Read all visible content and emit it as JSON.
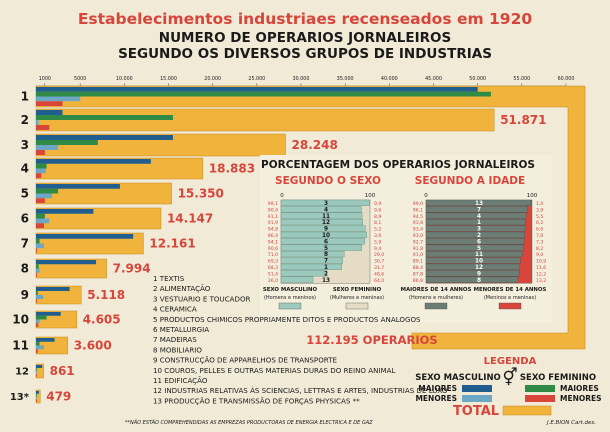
{
  "chart_data": {
    "type": "bar",
    "title": "Estabelecimentos industriaes recenseados em 1920",
    "subtitle": [
      "NUMERO DE OPERARIOS JORNALEIROS",
      "SEGUNDO OS DIVERSOS GRUPOS DE INDUSTRIAS"
    ],
    "x_ticks": [
      "1000",
      "5000",
      "10.000",
      "15.000",
      "20.000",
      "25.000",
      "30.000",
      "35.000",
      "40.000",
      "45.000",
      "50.000",
      "55.000",
      "60.000"
    ],
    "xlim": [
      0,
      60000
    ],
    "categories": [
      "1",
      "2",
      "3",
      "4",
      "5",
      "6",
      "7",
      "8",
      "9",
      "10",
      "11",
      "12",
      "13*"
    ],
    "total_labels": [
      "",
      "51.871",
      "28.248",
      "18.883",
      "15.350",
      "14.147",
      "12.161",
      "7.994",
      "5.118",
      "4.605",
      "3.600",
      "861",
      "479"
    ],
    "series": [
      {
        "name": "Total",
        "values": [
          60000,
          51871,
          28248,
          18883,
          15350,
          14147,
          12161,
          7994,
          5118,
          4605,
          3600,
          861,
          479
        ]
      },
      {
        "name": "Sexo masculino - maiores",
        "values": [
          50000,
          3000,
          15500,
          13000,
          9500,
          6500,
          11000,
          6800,
          3800,
          2800,
          2100,
          700,
          330
        ]
      },
      {
        "name": "Sexo feminino - maiores",
        "values": [
          51500,
          15500,
          7000,
          1200,
          2500,
          1000,
          400,
          300,
          200,
          1200,
          400,
          40,
          20
        ]
      },
      {
        "name": "Sexo masculino - menores",
        "values": [
          5000,
          300,
          2500,
          1100,
          1800,
          1500,
          900,
          400,
          800,
          400,
          900,
          100,
          90
        ]
      },
      {
        "name": "Sexo feminino - menores",
        "values": [
          3000,
          1500,
          1000,
          600,
          1000,
          900,
          100,
          50,
          100,
          250,
          200,
          20,
          40
        ]
      }
    ],
    "industry_legend": [
      "1  TEXTIS",
      "2  ALIMENTAÇÃO",
      "3  VESTUARIO E TOUCADOR",
      "4  CERAMICA",
      "5  PRODUCTOS CHIMICOS PROPRIAMENTE DITOS E PRODUCTOS ANALOGOS",
      "6  METALLURGIA",
      "7  MADEIRAS",
      "8  MOBILIARIO",
      "9  CONSTRUCÇÃO DE APPARELHOS DE TRANSPORTE",
      "10  COUROS, PELLES E OUTRAS MATERIAS DURAS DO REINO ANIMAL",
      "11  EDIFICAÇÃO",
      "12  INDUSTRIAS RELATIVAS ÁS SCIENCIAS, LETTRAS E ARTES, INDUSTRIAS DE LUXO",
      "13  PRODUCÇÃO E TRANSMISSÃO DE FORÇAS PHYSICAS **"
    ],
    "total_workers": "112.195 OPERARIOS",
    "footnote": "**NÃO ESTÃO COMPREHENDIDAS AS EMPREZAS PRODUCTORAS DE ENERGIA ELECTRICA E DE GAZ",
    "signature": "J.E.BION Cart.des.",
    "inset": {
      "title": "PORCENTAGEM DOS OPERARIOS JORNALEIROS",
      "sub_sex": "SEGUNDO O SEXO",
      "sub_age": "SEGUNDO A IDADE",
      "scale": [
        "0",
        "100"
      ],
      "left_labels": [
        "99,1",
        "90,4",
        "91,1",
        "91,9",
        "94,8",
        "96,4",
        "94,1",
        "90,6",
        "71,0",
        "69,3",
        "68,3",
        "51,4",
        "36,0"
      ],
      "right_labels": [
        "0,9",
        "9,6",
        "8,9",
        "8,1",
        "5,2",
        "3,6",
        "5,9",
        "9,4",
        "29,0",
        "30,7",
        "31,7",
        "48,6",
        "64,0"
      ],
      "age_left_labels": [
        "99,0",
        "96,1",
        "94,5",
        "93,8",
        "93,4",
        "93,0",
        "92,7",
        "91,8",
        "91,0",
        "89,1",
        "88,4",
        "87,8",
        "86,8"
      ],
      "age_right_labels": [
        "1,0",
        "3,9",
        "5,5",
        "6,2",
        "6,6",
        "7,0",
        "7,3",
        "8,2",
        "9,0",
        "10,9",
        "11,6",
        "12,2",
        "13,2"
      ],
      "bars_sex": [
        "3",
        "4",
        "11",
        "12",
        "9",
        "10",
        "6",
        "5",
        "8",
        "7",
        "1",
        "2",
        "13"
      ],
      "bars_age": [
        "13",
        "7",
        "4",
        "1",
        "3",
        "2",
        "6",
        "5",
        "11",
        "10",
        "12",
        "9",
        "8"
      ],
      "sex_values": [
        99.1,
        90.4,
        91.1,
        91.9,
        94.8,
        96.4,
        94.1,
        90.6,
        71.0,
        69.3,
        68.3,
        51.4,
        36.0
      ],
      "age_values": [
        99.0,
        96.1,
        94.5,
        93.8,
        93.4,
        93.0,
        92.7,
        91.8,
        91.0,
        89.1,
        88.4,
        87.8,
        86.8
      ],
      "captions": [
        [
          "SEXO MASCULINO",
          "(Homens e meninos)"
        ],
        [
          "SEXO FEMININO",
          "(Mulheres e meninas)"
        ],
        [
          "MAIORES DE 14 ANNOS",
          "(Homens e mulheres)"
        ],
        [
          "MENORES DE 14 ANNOS",
          "(Meninos e meninas)"
        ]
      ]
    },
    "legend": {
      "title": "LEGENDA",
      "sexo_masculino": "SEXO MASCULINO",
      "sexo_feminino": "SEXO FEMININO",
      "maiores": "MAIORES",
      "menores": "MENORES",
      "total": "TOTAL"
    }
  },
  "colors": {
    "background": "#f1ead6",
    "total": "#f0b43c",
    "total_edge": "#c98a1e",
    "masc_maiores": "#1f5e8f",
    "masc_menores": "#6ca8c6",
    "fem_maiores": "#2f8a45",
    "fem_menores": "#d8453b",
    "red_text": "#d8453b",
    "sex_bar": "#9cc9bd",
    "sex_female": "#e4dcc4",
    "age_bar": "#6b7d74",
    "age_minor": "#d8453b",
    "ink": "#1a1a1a"
  }
}
